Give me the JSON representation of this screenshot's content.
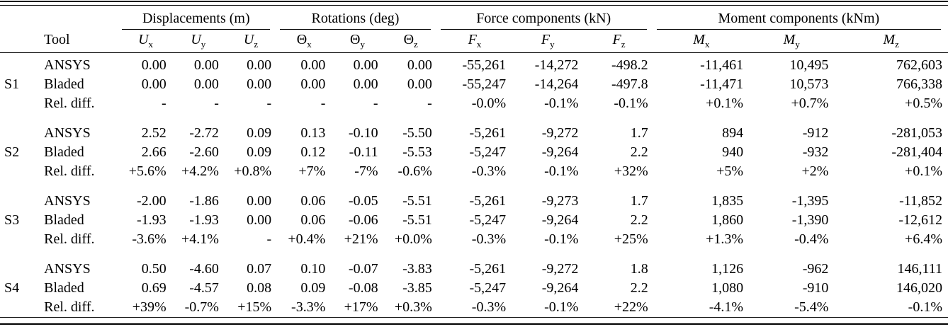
{
  "table": {
    "tool_header": "Tool",
    "group_headers": [
      {
        "label": "Displacements (m)"
      },
      {
        "label": "Rotations (deg)"
      },
      {
        "label": "Force components (kN)"
      },
      {
        "label": "Moment components (kNm)"
      }
    ],
    "columns": [
      {
        "sym": "U",
        "sub": "x"
      },
      {
        "sym": "U",
        "sub": "y"
      },
      {
        "sym": "U",
        "sub": "z"
      },
      {
        "sym": "Θ",
        "sub": "x"
      },
      {
        "sym": "Θ",
        "sub": "y"
      },
      {
        "sym": "Θ",
        "sub": "z"
      },
      {
        "sym": "F",
        "sub": "x"
      },
      {
        "sym": "F",
        "sub": "y"
      },
      {
        "sym": "F",
        "sub": "z"
      },
      {
        "sym": "M",
        "sub": "x"
      },
      {
        "sym": "M",
        "sub": "y"
      },
      {
        "sym": "M",
        "sub": "z"
      }
    ],
    "blocks": [
      {
        "label": "S1",
        "rows": [
          {
            "tool": "ANSYS",
            "values": [
              "0.00",
              "0.00",
              "0.00",
              "0.00",
              "0.00",
              "0.00",
              "-55,261",
              "-14,272",
              "-498.2",
              "-11,461",
              "10,495",
              "762,603"
            ]
          },
          {
            "tool": "Bladed",
            "values": [
              "0.00",
              "0.00",
              "0.00",
              "0.00",
              "0.00",
              "0.00",
              "-55,247",
              "-14,264",
              "-497.8",
              "-11,471",
              "10,573",
              "766,338"
            ]
          },
          {
            "tool": "Rel. diff.",
            "values": [
              "-",
              "-",
              "-",
              "-",
              "-",
              "-",
              "-0.0%",
              "-0.1%",
              "-0.1%",
              "+0.1%",
              "+0.7%",
              "+0.5%"
            ]
          }
        ]
      },
      {
        "label": "S2",
        "rows": [
          {
            "tool": "ANSYS",
            "values": [
              "2.52",
              "-2.72",
              "0.09",
              "0.13",
              "-0.10",
              "-5.50",
              "-5,261",
              "-9,272",
              "1.7",
              "894",
              "-912",
              "-281,053"
            ]
          },
          {
            "tool": "Bladed",
            "values": [
              "2.66",
              "-2.60",
              "0.09",
              "0.12",
              "-0.11",
              "-5.53",
              "-5,247",
              "-9,264",
              "2.2",
              "940",
              "-932",
              "-281,404"
            ]
          },
          {
            "tool": "Rel. diff.",
            "values": [
              "+5.6%",
              "+4.2%",
              "+0.8%",
              "+7%",
              "-7%",
              "-0.6%",
              "-0.3%",
              "-0.1%",
              "+32%",
              "+5%",
              "+2%",
              "+0.1%"
            ]
          }
        ]
      },
      {
        "label": "S3",
        "rows": [
          {
            "tool": "ANSYS",
            "values": [
              "-2.00",
              "-1.86",
              "0.00",
              "0.06",
              "-0.05",
              "-5.51",
              "-5,261",
              "-9,273",
              "1.7",
              "1,835",
              "-1,395",
              "-11,852"
            ]
          },
          {
            "tool": "Bladed",
            "values": [
              "-1.93",
              "-1.93",
              "0.00",
              "0.06",
              "-0.06",
              "-5.51",
              "-5,247",
              "-9,264",
              "2.2",
              "1,860",
              "-1,390",
              "-12,612"
            ]
          },
          {
            "tool": "Rel. diff.",
            "values": [
              "-3.6%",
              "+4.1%",
              "-",
              "+0.4%",
              "+21%",
              "+0.0%",
              "-0.3%",
              "-0.1%",
              "+25%",
              "+1.3%",
              "-0.4%",
              "+6.4%"
            ]
          }
        ]
      },
      {
        "label": "S4",
        "rows": [
          {
            "tool": "ANSYS",
            "values": [
              "0.50",
              "-4.60",
              "0.07",
              "0.10",
              "-0.07",
              "-3.83",
              "-5,261",
              "-9,272",
              "1.8",
              "1,126",
              "-962",
              "146,111"
            ]
          },
          {
            "tool": "Bladed",
            "values": [
              "0.69",
              "-4.57",
              "0.08",
              "0.09",
              "-0.08",
              "-3.85",
              "-5,247",
              "-9,264",
              "2.2",
              "1,080",
              "-910",
              "146,020"
            ]
          },
          {
            "tool": "Rel. diff.",
            "values": [
              "+39%",
              "-0.7%",
              "+15%",
              "-3.3%",
              "+17%",
              "+0.3%",
              "-0.3%",
              "-0.1%",
              "+22%",
              "-4.1%",
              "-5.4%",
              "-0.1%"
            ]
          }
        ]
      }
    ]
  }
}
